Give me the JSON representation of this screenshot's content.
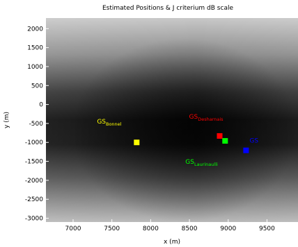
{
  "chart_data": {
    "type": "heatmap",
    "title": "Estimated Positions & J criterium dB scale",
    "xlabel": "x (m)",
    "ylabel": "y (m)",
    "xlim": [
      6650,
      9900
    ],
    "ylim": [
      -3100,
      2280
    ],
    "xticks": [
      7000,
      7500,
      8000,
      8500,
      9000,
      9500
    ],
    "yticks": [
      2000,
      1500,
      1000,
      500,
      0,
      -500,
      -1000,
      -1500,
      -2000,
      -2500,
      -3000
    ],
    "colormap": "gray",
    "grid": false,
    "points": [
      {
        "label": "GS",
        "sub": "Bonnel",
        "x": 7820,
        "y": -1000,
        "color": "#ffff00",
        "label_color": "#ffff00"
      },
      {
        "label": "GS",
        "sub": "Desharnais",
        "x": 8890,
        "y": -830,
        "color": "#ff0000",
        "label_color": "#ff0000"
      },
      {
        "label": "GS",
        "sub": "Laurinaulli",
        "x": 8960,
        "y": -960,
        "color": "#00ff00",
        "label_color": "#00ff00"
      },
      {
        "label": "GS",
        "sub": "",
        "x": 9230,
        "y": -1210,
        "color": "#0000ff",
        "label_color": "#0000ff"
      }
    ]
  }
}
